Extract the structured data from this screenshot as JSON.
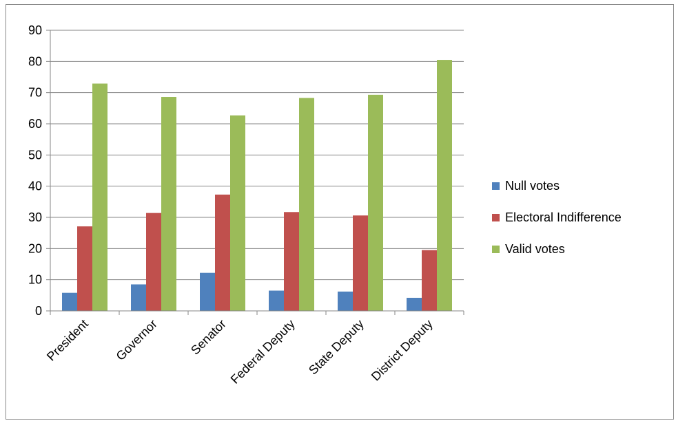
{
  "chart_data": {
    "type": "bar",
    "title": "",
    "xlabel": "",
    "ylabel": "",
    "categories": [
      "President",
      "Governor",
      "Senator",
      "Federal Deputy",
      "State Deputy",
      "District Deputy"
    ],
    "series": [
      {
        "name": "Null votes",
        "color": "#4f81bd",
        "values": [
          5.8,
          8.5,
          12.2,
          6.5,
          6.2,
          4.2
        ]
      },
      {
        "name": "Electoral Indifference",
        "color": "#c0504d",
        "values": [
          27.1,
          31.4,
          37.3,
          31.7,
          30.6,
          19.5
        ]
      },
      {
        "name": "Valid votes",
        "color": "#9bbb59",
        "values": [
          72.9,
          68.6,
          62.7,
          68.3,
          69.3,
          80.5
        ]
      }
    ],
    "ylim": [
      0,
      90
    ],
    "yticks": [
      0,
      10,
      20,
      30,
      40,
      50,
      60,
      70,
      80,
      90
    ],
    "grid": true,
    "legend_position": "right"
  }
}
